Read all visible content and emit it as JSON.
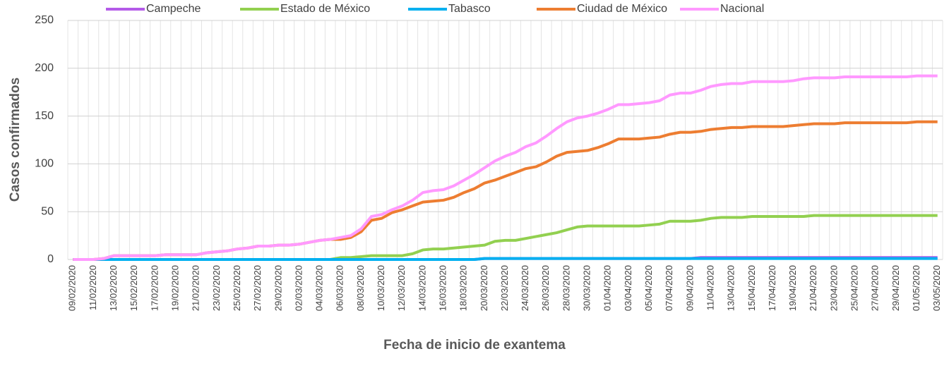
{
  "chart_data": {
    "type": "line",
    "xlabel": "Fecha de inicio de exantema",
    "ylabel": "Casos confirmados",
    "categories": [
      "09/02/2020",
      null,
      "11/02/2020",
      null,
      "13/02/2020",
      null,
      "15/02/2020",
      null,
      "17/02/2020",
      null,
      "19/02/2020",
      null,
      "21/02/2020",
      null,
      "23/02/2020",
      null,
      "25/02/2020",
      null,
      "27/02/2020",
      null,
      "29/02/2020",
      null,
      "02/03/2020",
      null,
      "04/03/2020",
      null,
      "06/03/2020",
      null,
      "08/03/2020",
      null,
      "10/03/2020",
      null,
      "12/03/2020",
      null,
      "14/03/2020",
      null,
      "16/03/2020",
      null,
      "18/03/2020",
      null,
      "20/03/2020",
      null,
      "22/03/2020",
      null,
      "24/03/2020",
      null,
      "26/03/2020",
      null,
      "28/03/2020",
      null,
      "30/03/2020",
      null,
      "01/04/2020",
      null,
      "03/04/2020",
      null,
      "05/04/2020",
      null,
      "07/04/2020",
      null,
      "09/04/2020",
      null,
      "11/04/2020",
      null,
      "13/04/2020",
      null,
      "15/04/2020",
      null,
      "17/04/2020",
      null,
      "19/04/2020",
      null,
      "21/04/2020",
      null,
      "23/04/2020",
      null,
      "25/04/2020",
      null,
      "27/04/2020",
      null,
      "29/04/2020",
      null,
      "01/05/2020",
      null,
      "03/05/2020"
    ],
    "series": [
      {
        "name": "Campeche",
        "color": "#b45ae8",
        "values": [
          0,
          0,
          0,
          0,
          0,
          0,
          0,
          0,
          0,
          0,
          0,
          0,
          0,
          0,
          0,
          0,
          0,
          0,
          0,
          0,
          0,
          0,
          0,
          0,
          0,
          0,
          0,
          0,
          0,
          0,
          0,
          0,
          0,
          0,
          0,
          0,
          0,
          0,
          0,
          0,
          1,
          1,
          1,
          1,
          1,
          1,
          1,
          1,
          1,
          1,
          1,
          1,
          1,
          1,
          1,
          1,
          1,
          1,
          1,
          1,
          1,
          2,
          2,
          2,
          2,
          2,
          2,
          2,
          2,
          2,
          2,
          2,
          2,
          2,
          2,
          2,
          2,
          2,
          2,
          2,
          2,
          2,
          2,
          2,
          2
        ]
      },
      {
        "name": "Estado de México",
        "color": "#92d050",
        "values": [
          0,
          0,
          0,
          0,
          0,
          0,
          0,
          0,
          0,
          0,
          0,
          0,
          0,
          0,
          0,
          0,
          0,
          0,
          0,
          0,
          0,
          0,
          0,
          0,
          0,
          0,
          2,
          2,
          3,
          4,
          4,
          4,
          4,
          6,
          10,
          11,
          11,
          12,
          13,
          14,
          15,
          19,
          20,
          20,
          22,
          24,
          26,
          28,
          31,
          34,
          35,
          35,
          35,
          35,
          35,
          35,
          36,
          37,
          40,
          40,
          40,
          41,
          43,
          44,
          44,
          44,
          45,
          45,
          45,
          45,
          45,
          45,
          46,
          46,
          46,
          46,
          46,
          46,
          46,
          46,
          46,
          46,
          46,
          46,
          46
        ]
      },
      {
        "name": "Tabasco",
        "color": "#00b0f0",
        "values": [
          0,
          0,
          0,
          0,
          0,
          0,
          0,
          0,
          0,
          0,
          0,
          0,
          0,
          0,
          0,
          0,
          0,
          0,
          0,
          0,
          0,
          0,
          0,
          0,
          0,
          0,
          0,
          0,
          0,
          0,
          0,
          0,
          0,
          0,
          0,
          0,
          0,
          0,
          0,
          0,
          1,
          1,
          1,
          1,
          1,
          1,
          1,
          1,
          1,
          1,
          1,
          1,
          1,
          1,
          1,
          1,
          1,
          1,
          1,
          1,
          1,
          1,
          1,
          1,
          1,
          1,
          1,
          1,
          1,
          1,
          1,
          1,
          1,
          1,
          1,
          1,
          1,
          1,
          1,
          1,
          1,
          1,
          1,
          1,
          1
        ]
      },
      {
        "name": "Ciudad de México",
        "color": "#ed7d31",
        "values": [
          0,
          0,
          0,
          1,
          4,
          4,
          4,
          4,
          4,
          5,
          5,
          5,
          5,
          7,
          8,
          9,
          11,
          12,
          14,
          14,
          15,
          15,
          16,
          18,
          20,
          21,
          21,
          23,
          29,
          41,
          43,
          49,
          52,
          56,
          60,
          61,
          62,
          65,
          70,
          74,
          80,
          83,
          87,
          91,
          95,
          97,
          102,
          108,
          112,
          113,
          114,
          117,
          121,
          126,
          126,
          126,
          127,
          128,
          131,
          133,
          133,
          134,
          136,
          137,
          138,
          138,
          139,
          139,
          139,
          139,
          140,
          141,
          142,
          142,
          142,
          143,
          143,
          143,
          143,
          143,
          143,
          143,
          144,
          144,
          144
        ]
      },
      {
        "name": "Nacional",
        "color": "#ff99ff",
        "values": [
          0,
          0,
          0,
          1,
          4,
          4,
          4,
          4,
          4,
          5,
          5,
          5,
          5,
          7,
          8,
          9,
          11,
          12,
          14,
          14,
          15,
          15,
          16,
          18,
          20,
          21,
          23,
          25,
          32,
          45,
          47,
          52,
          56,
          62,
          70,
          72,
          73,
          77,
          83,
          89,
          96,
          103,
          108,
          112,
          118,
          122,
          129,
          137,
          144,
          148,
          150,
          153,
          157,
          162,
          162,
          163,
          164,
          166,
          172,
          174,
          174,
          177,
          181,
          183,
          184,
          184,
          186,
          186,
          186,
          186,
          187,
          189,
          190,
          190,
          190,
          191,
          191,
          191,
          191,
          191,
          191,
          191,
          192,
          192,
          192
        ]
      }
    ],
    "ylim": [
      0,
      250
    ],
    "yticks": [
      0,
      50,
      100,
      150,
      200,
      250
    ],
    "grid": true,
    "legend": "top"
  }
}
